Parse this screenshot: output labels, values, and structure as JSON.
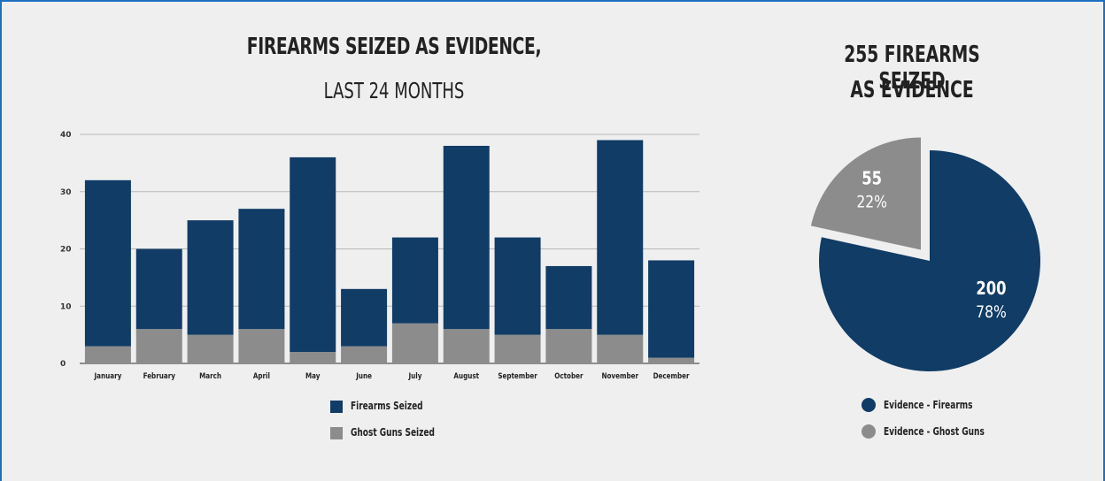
{
  "chart_data": [
    {
      "type": "bar",
      "stacked": true,
      "title": "FIREARMS SEIZED AS EVIDENCE,",
      "subtitle": "LAST 24 MONTHS",
      "categories": [
        "January",
        "February",
        "March",
        "April",
        "May",
        "June",
        "July",
        "August",
        "September",
        "October",
        "November",
        "December"
      ],
      "series": [
        {
          "name": "Firearms Seized",
          "color": "#103c66",
          "values": [
            29,
            14,
            20,
            21,
            34,
            10,
            15,
            32,
            17,
            11,
            34,
            17
          ]
        },
        {
          "name": "Ghost Guns Seized",
          "color": "#8c8c8c",
          "values": [
            3,
            6,
            5,
            6,
            2,
            3,
            7,
            6,
            5,
            6,
            5,
            1
          ]
        }
      ],
      "ylim": [
        0,
        40
      ],
      "yticks": [
        "0",
        "10",
        "20",
        "30",
        "40"
      ],
      "grid": true,
      "legend": "bottom"
    },
    {
      "type": "pie",
      "title": "255 FIREARMS SEIZED",
      "subtitle": "AS EVIDENCE",
      "slices": [
        {
          "name": "Evidence - Firearms",
          "value": 200,
          "percent": "78%",
          "color": "#103c66"
        },
        {
          "name": "Evidence - Ghost Guns",
          "value": 55,
          "percent": "22%",
          "color": "#8c8c8c"
        }
      ],
      "legend": "bottom"
    }
  ]
}
